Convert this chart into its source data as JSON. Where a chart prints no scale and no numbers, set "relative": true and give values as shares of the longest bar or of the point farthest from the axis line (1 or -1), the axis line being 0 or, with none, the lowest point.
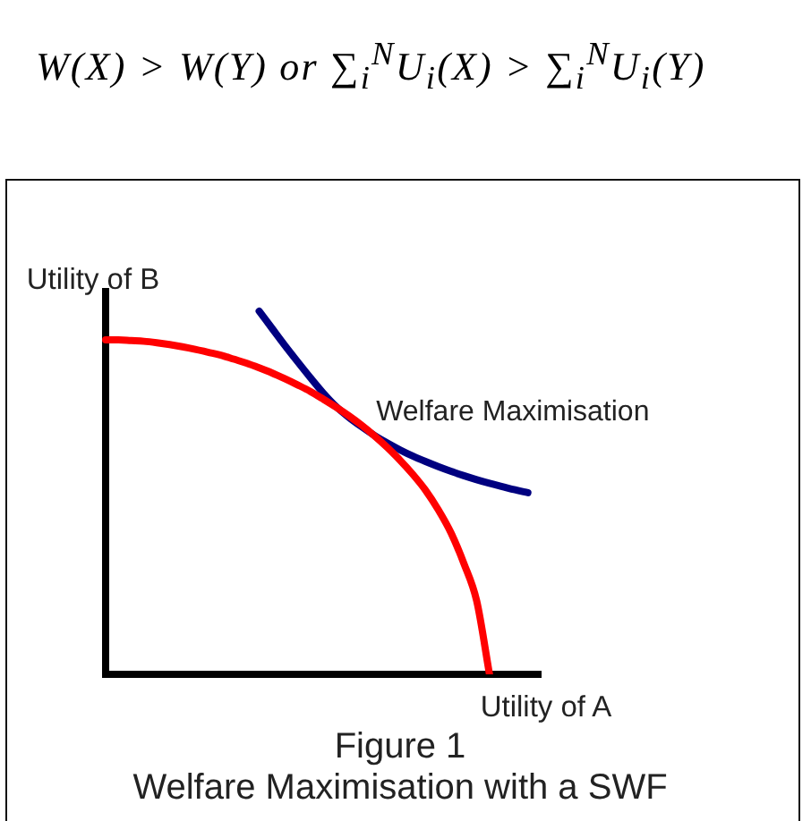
{
  "chart_data": {
    "type": "line",
    "title": "Figure 1",
    "subtitle": "Welfare Maximisation with a SWF",
    "xlabel": "Utility of A",
    "ylabel": "Utility of B",
    "annotations": [
      "W(X) > W(Y) or ∑$_{i}$$^{N}$U$_{i}$(X) > ∑$_{i}$$^{N}$U$_{i}$(Y)",
      "Welfare Maximisation"
    ],
    "categories": [
      null,
      null,
      null,
      null,
      null,
      null,
      null,
      null,
      null,
      null,
      null,
      null,
      null,
      null,
      null,
      null,
      null,
      null,
      null,
      null,
      null,
      null,
      null,
      null,
      null,
      null,
      null,
      null,
      null,
      null,
      null,
      null,
      null,
      null,
      null
    ],
    "relative": true,
    "tick_labels": false,
    "marker": "none",
    "series": [
      {
        "color": "#ff0000",
        "values": [
          0.921,
          0.921,
          0.919,
          0.917,
          0.913,
          0.908,
          0.902,
          0.895,
          0.887,
          0.879,
          0.868,
          0.857,
          0.844,
          0.83,
          0.814,
          0.797,
          0.779,
          0.758,
          0.736,
          0.712,
          0.686,
          0.657,
          0.625,
          0.59,
          0.551,
          0.507,
          0.453,
          0.389,
          0.305,
          0.202,
          0,
          null,
          null,
          null,
          null
        ]
      },
      {
        "color": "#000080",
        "values": [
          null,
          null,
          null,
          null,
          null,
          null,
          null,
          null,
          null,
          null,
          null,
          null,
          1.0,
          0.953,
          0.906,
          0.861,
          0.817,
          0.775,
          0.738,
          0.708,
          0.682,
          0.658,
          0.637,
          0.618,
          0.601,
          0.586,
          0.572,
          0.559,
          0.547,
          0.536,
          0.526,
          0.517,
          0.508,
          0.5,
          null
        ]
      }
    ]
  }
}
